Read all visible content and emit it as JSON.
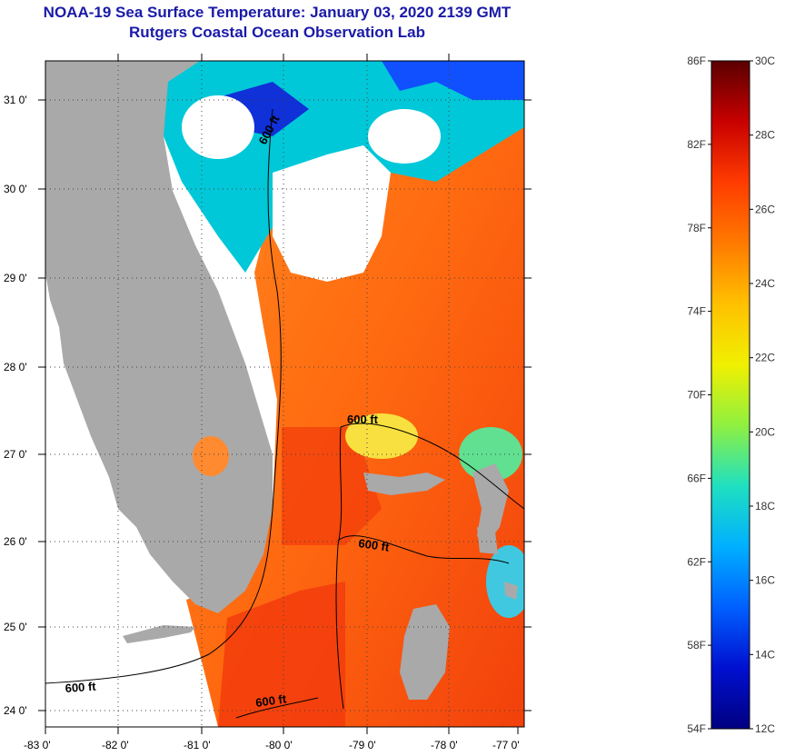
{
  "header": {
    "title_line1": "NOAA-19 Sea Surface Temperature:  January 03, 2020 2139 GMT",
    "title_line2": "Rutgers Coastal Ocean Observation Lab"
  },
  "map": {
    "lat_ticks": [
      "31 0'",
      "30 0'",
      "29 0'",
      "28 0'",
      "27 0'",
      "26 0'",
      "25 0'",
      "24 0'"
    ],
    "lon_ticks": [
      "-83 0'",
      "-82 0'",
      "-81 0'",
      "-80 0'",
      "-79 0'",
      "-78 0'",
      "-77 0'"
    ],
    "contour_labels": [
      "600 ft",
      "600 ft",
      "600 ft",
      "600 ft",
      "600 ft"
    ],
    "colors": {
      "land": "#a9a9a9",
      "ocean_warm": "#ff6a10",
      "ocean_hot": "#f23a0c",
      "cloud": "#ffffff"
    }
  },
  "colorbar": {
    "fahrenheit": [
      "86F",
      "82F",
      "78F",
      "74F",
      "70F",
      "66F",
      "62F",
      "58F",
      "54F"
    ],
    "celsius": [
      "30C",
      "28C",
      "26C",
      "24C",
      "22C",
      "20C",
      "18C",
      "16C",
      "14C",
      "12C"
    ],
    "color_stops": [
      "#5a0000",
      "#c80000",
      "#ff3c00",
      "#ff7a00",
      "#ffc000",
      "#f0f000",
      "#90f040",
      "#20e0c0",
      "#00b0ff",
      "#0060ff",
      "#0010d0",
      "#000080"
    ]
  }
}
